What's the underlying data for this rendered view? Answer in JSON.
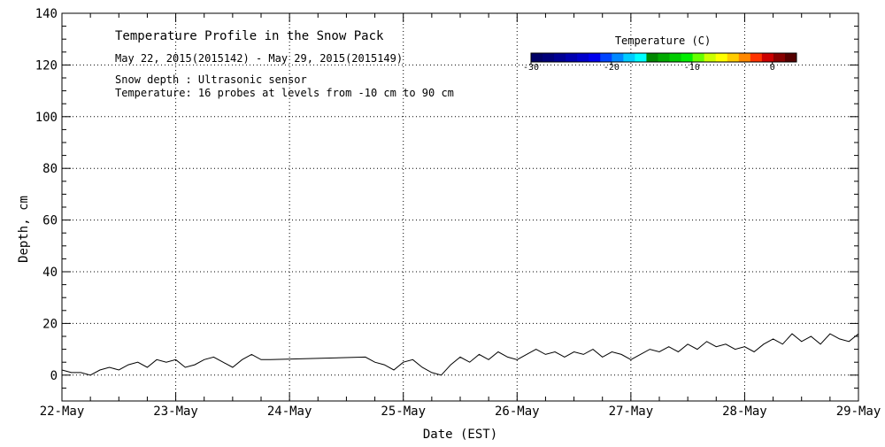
{
  "chart_data": {
    "type": "line",
    "title": "Temperature Profile in the Snow Pack",
    "subtitle": "May 22, 2015(2015142) - May 29, 2015(2015149)",
    "annotations": [
      "Snow depth : Ultrasonic sensor",
      "Temperature: 16 probes at levels from -10 cm to 90 cm"
    ],
    "xlabel": "Date (EST)",
    "ylabel": "Depth, cm",
    "x_tick_labels": [
      "22-May",
      "23-May",
      "24-May",
      "25-May",
      "26-May",
      "27-May",
      "28-May",
      "29-May"
    ],
    "xlim": [
      "2015-05-22",
      "2015-05-29"
    ],
    "ylim": [
      -10,
      140
    ],
    "y_ticks": [
      0,
      20,
      40,
      60,
      80,
      100,
      120,
      140
    ],
    "grid": true,
    "colorbar": {
      "title": "Temperature (C)",
      "range": [
        -30,
        3
      ],
      "tick_values": [
        -30,
        -20,
        -10,
        0
      ],
      "tick_labels": [
        "-30",
        "-20",
        "-10",
        "0"
      ],
      "colors": [
        "#000066",
        "#00007a",
        "#000094",
        "#0000b0",
        "#0000cc",
        "#0000ee",
        "#0044ff",
        "#0088ff",
        "#00ccff",
        "#00ffff",
        "#008800",
        "#00aa00",
        "#00cc00",
        "#00ee00",
        "#66ff00",
        "#ccff00",
        "#ffff00",
        "#ffcc00",
        "#ff8800",
        "#ff3300",
        "#cc0000",
        "#880000",
        "#550000"
      ]
    },
    "series": [
      {
        "color": "#000000",
        "points": [
          [
            "2015-05-22 00:00",
            2
          ],
          [
            "2015-05-22 02:00",
            1
          ],
          [
            "2015-05-22 04:00",
            1
          ],
          [
            "2015-05-22 06:00",
            0
          ],
          [
            "2015-05-22 08:00",
            2
          ],
          [
            "2015-05-22 10:00",
            3
          ],
          [
            "2015-05-22 12:00",
            2
          ],
          [
            "2015-05-22 14:00",
            4
          ],
          [
            "2015-05-22 16:00",
            5
          ],
          [
            "2015-05-22 18:00",
            3
          ],
          [
            "2015-05-22 20:00",
            6
          ],
          [
            "2015-05-22 22:00",
            5
          ],
          [
            "2015-05-23 00:00",
            6
          ],
          [
            "2015-05-23 02:00",
            3
          ],
          [
            "2015-05-23 04:00",
            4
          ],
          [
            "2015-05-23 06:00",
            6
          ],
          [
            "2015-05-23 08:00",
            7
          ],
          [
            "2015-05-23 10:00",
            5
          ],
          [
            "2015-05-23 12:00",
            3
          ],
          [
            "2015-05-23 14:00",
            6
          ],
          [
            "2015-05-23 16:00",
            8
          ],
          [
            "2015-05-23 18:00",
            6
          ],
          [
            "2015-05-23 20:00",
            6
          ],
          [
            "2015-05-24 16:00",
            7
          ],
          [
            "2015-05-24 18:00",
            5
          ],
          [
            "2015-05-24 20:00",
            4
          ],
          [
            "2015-05-24 22:00",
            2
          ],
          [
            "2015-05-25 00:00",
            5
          ],
          [
            "2015-05-25 02:00",
            6
          ],
          [
            "2015-05-25 04:00",
            3
          ],
          [
            "2015-05-25 06:00",
            1
          ],
          [
            "2015-05-25 08:00",
            0
          ],
          [
            "2015-05-25 10:00",
            4
          ],
          [
            "2015-05-25 12:00",
            7
          ],
          [
            "2015-05-25 14:00",
            5
          ],
          [
            "2015-05-25 16:00",
            8
          ],
          [
            "2015-05-25 18:00",
            6
          ],
          [
            "2015-05-25 20:00",
            9
          ],
          [
            "2015-05-25 22:00",
            7
          ],
          [
            "2015-05-26 00:00",
            6
          ],
          [
            "2015-05-26 02:00",
            8
          ],
          [
            "2015-05-26 04:00",
            10
          ],
          [
            "2015-05-26 06:00",
            8
          ],
          [
            "2015-05-26 08:00",
            9
          ],
          [
            "2015-05-26 10:00",
            7
          ],
          [
            "2015-05-26 12:00",
            9
          ],
          [
            "2015-05-26 14:00",
            8
          ],
          [
            "2015-05-26 16:00",
            10
          ],
          [
            "2015-05-26 18:00",
            7
          ],
          [
            "2015-05-26 20:00",
            9
          ],
          [
            "2015-05-26 22:00",
            8
          ],
          [
            "2015-05-27 00:00",
            6
          ],
          [
            "2015-05-27 02:00",
            8
          ],
          [
            "2015-05-27 04:00",
            10
          ],
          [
            "2015-05-27 06:00",
            9
          ],
          [
            "2015-05-27 08:00",
            11
          ],
          [
            "2015-05-27 10:00",
            9
          ],
          [
            "2015-05-27 12:00",
            12
          ],
          [
            "2015-05-27 14:00",
            10
          ],
          [
            "2015-05-27 16:00",
            13
          ],
          [
            "2015-05-27 18:00",
            11
          ],
          [
            "2015-05-27 20:00",
            12
          ],
          [
            "2015-05-27 22:00",
            10
          ],
          [
            "2015-05-28 00:00",
            11
          ],
          [
            "2015-05-28 02:00",
            9
          ],
          [
            "2015-05-28 04:00",
            12
          ],
          [
            "2015-05-28 06:00",
            14
          ],
          [
            "2015-05-28 08:00",
            12
          ],
          [
            "2015-05-28 10:00",
            16
          ],
          [
            "2015-05-28 12:00",
            13
          ],
          [
            "2015-05-28 14:00",
            15
          ],
          [
            "2015-05-28 16:00",
            12
          ],
          [
            "2015-05-28 18:00",
            16
          ],
          [
            "2015-05-28 20:00",
            14
          ],
          [
            "2015-05-28 22:00",
            13
          ],
          [
            "2015-05-29 00:00",
            16
          ]
        ]
      }
    ]
  }
}
